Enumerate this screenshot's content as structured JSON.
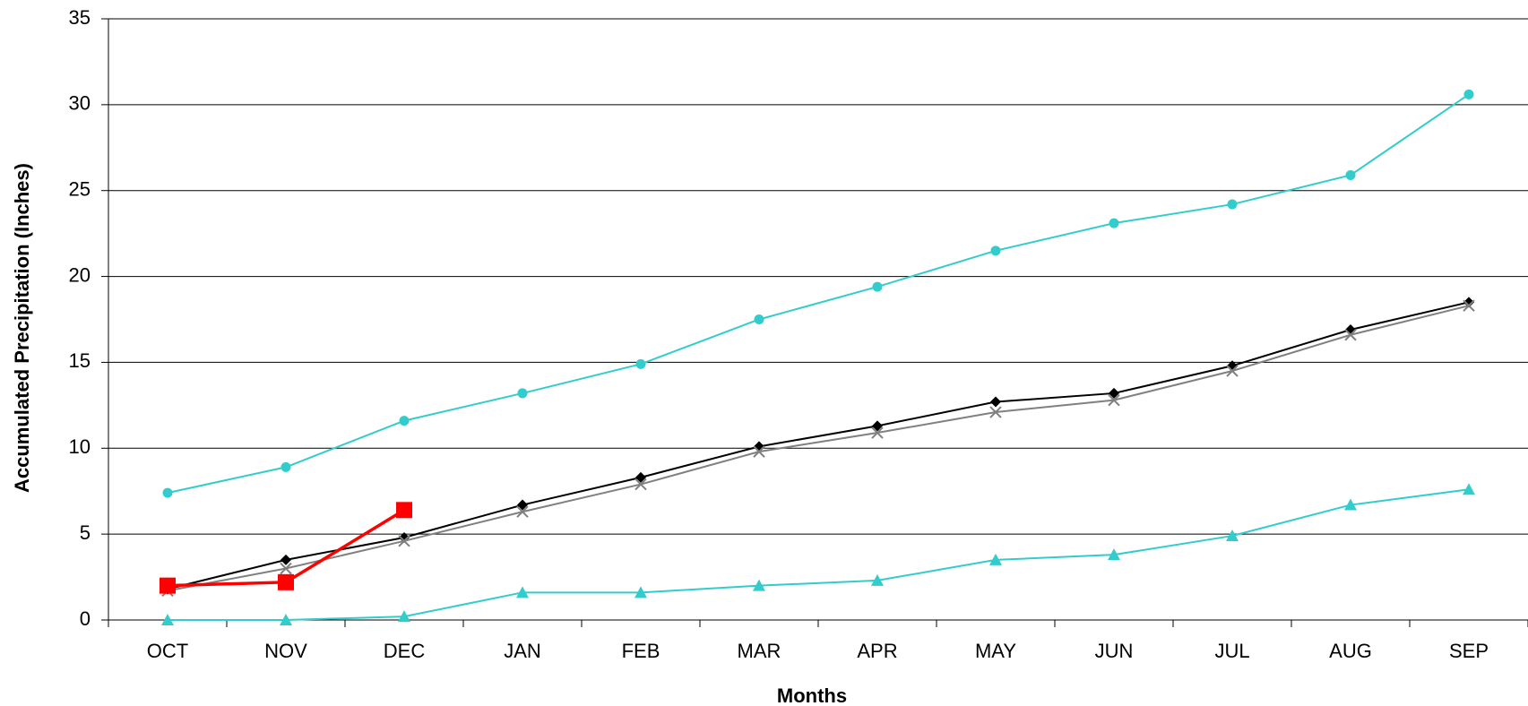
{
  "chart_data": {
    "type": "line",
    "x_label": "Months",
    "y_label": "Accumulated Precipitation (Inches)",
    "categories": [
      "OCT",
      "NOV",
      "DEC",
      "JAN",
      "FEB",
      "MAR",
      "APR",
      "MAY",
      "JUN",
      "JUL",
      "AUG",
      "SEP"
    ],
    "series": [
      {
        "color": "#33cccc",
        "marker": "circle",
        "values": [
          7.4,
          8.9,
          11.6,
          13.2,
          14.9,
          17.5,
          19.4,
          21.5,
          23.1,
          24.2,
          25.9,
          30.6
        ]
      },
      {
        "color": "#000000",
        "marker": "diamond",
        "values": [
          1.8,
          3.5,
          4.8,
          6.7,
          8.3,
          10.1,
          11.3,
          12.7,
          13.2,
          14.8,
          16.9,
          18.5
        ]
      },
      {
        "color": "#808080",
        "marker": "x",
        "values": [
          1.7,
          3.0,
          4.6,
          6.3,
          7.9,
          9.8,
          10.9,
          12.1,
          12.8,
          14.5,
          16.6,
          18.3
        ]
      },
      {
        "color": "#33cccc",
        "marker": "triangle",
        "values": [
          0,
          0,
          0.2,
          1.6,
          1.6,
          2.0,
          2.3,
          3.5,
          3.8,
          4.9,
          6.7,
          7.6
        ]
      },
      {
        "color": "#ff0000",
        "marker": "square",
        "values": [
          2.0,
          2.2,
          6.4,
          null,
          null,
          null,
          null,
          null,
          null,
          null,
          null,
          null
        ]
      }
    ],
    "ylim": [
      0,
      35
    ],
    "yticks": [
      0,
      5,
      10,
      15,
      20,
      25,
      30,
      35
    ],
    "grid": true
  }
}
